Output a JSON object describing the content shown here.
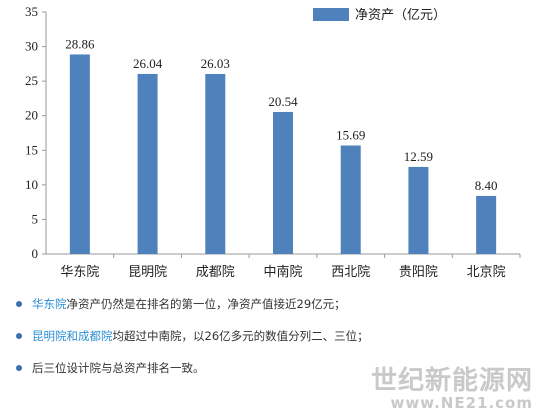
{
  "chart_data": {
    "type": "bar",
    "categories": [
      "华东院",
      "昆明院",
      "成都院",
      "中南院",
      "西北院",
      "贵阳院",
      "北京院"
    ],
    "series": [
      {
        "name": "净资产（亿元）",
        "values": [
          28.86,
          26.04,
          26.03,
          20.54,
          15.69,
          12.59,
          8.4
        ]
      }
    ],
    "value_labels": [
      "28.86",
      "26.04",
      "26.03",
      "20.54",
      "15.69",
      "12.59",
      "8.40"
    ],
    "y_ticks": [
      "0",
      "5",
      "10",
      "15",
      "20",
      "25",
      "30",
      "35"
    ],
    "ylim": [
      0,
      35
    ],
    "grid": false,
    "legend": "top-right",
    "bar_color": "#4f81bd"
  },
  "notes": [
    {
      "highlight": "华东院",
      "text": "净资产仍然是在排名的第一位，净资产值接近29亿元；"
    },
    {
      "highlight": "昆明院和成都院",
      "text": "均超过中南院，以26亿多元的数值分列二、三位；"
    },
    {
      "highlight": "",
      "text": "后三位设计院与总资产排名一致。"
    }
  ],
  "watermark": {
    "line1": "世纪新能源网",
    "line2": "www.NE21.com"
  }
}
